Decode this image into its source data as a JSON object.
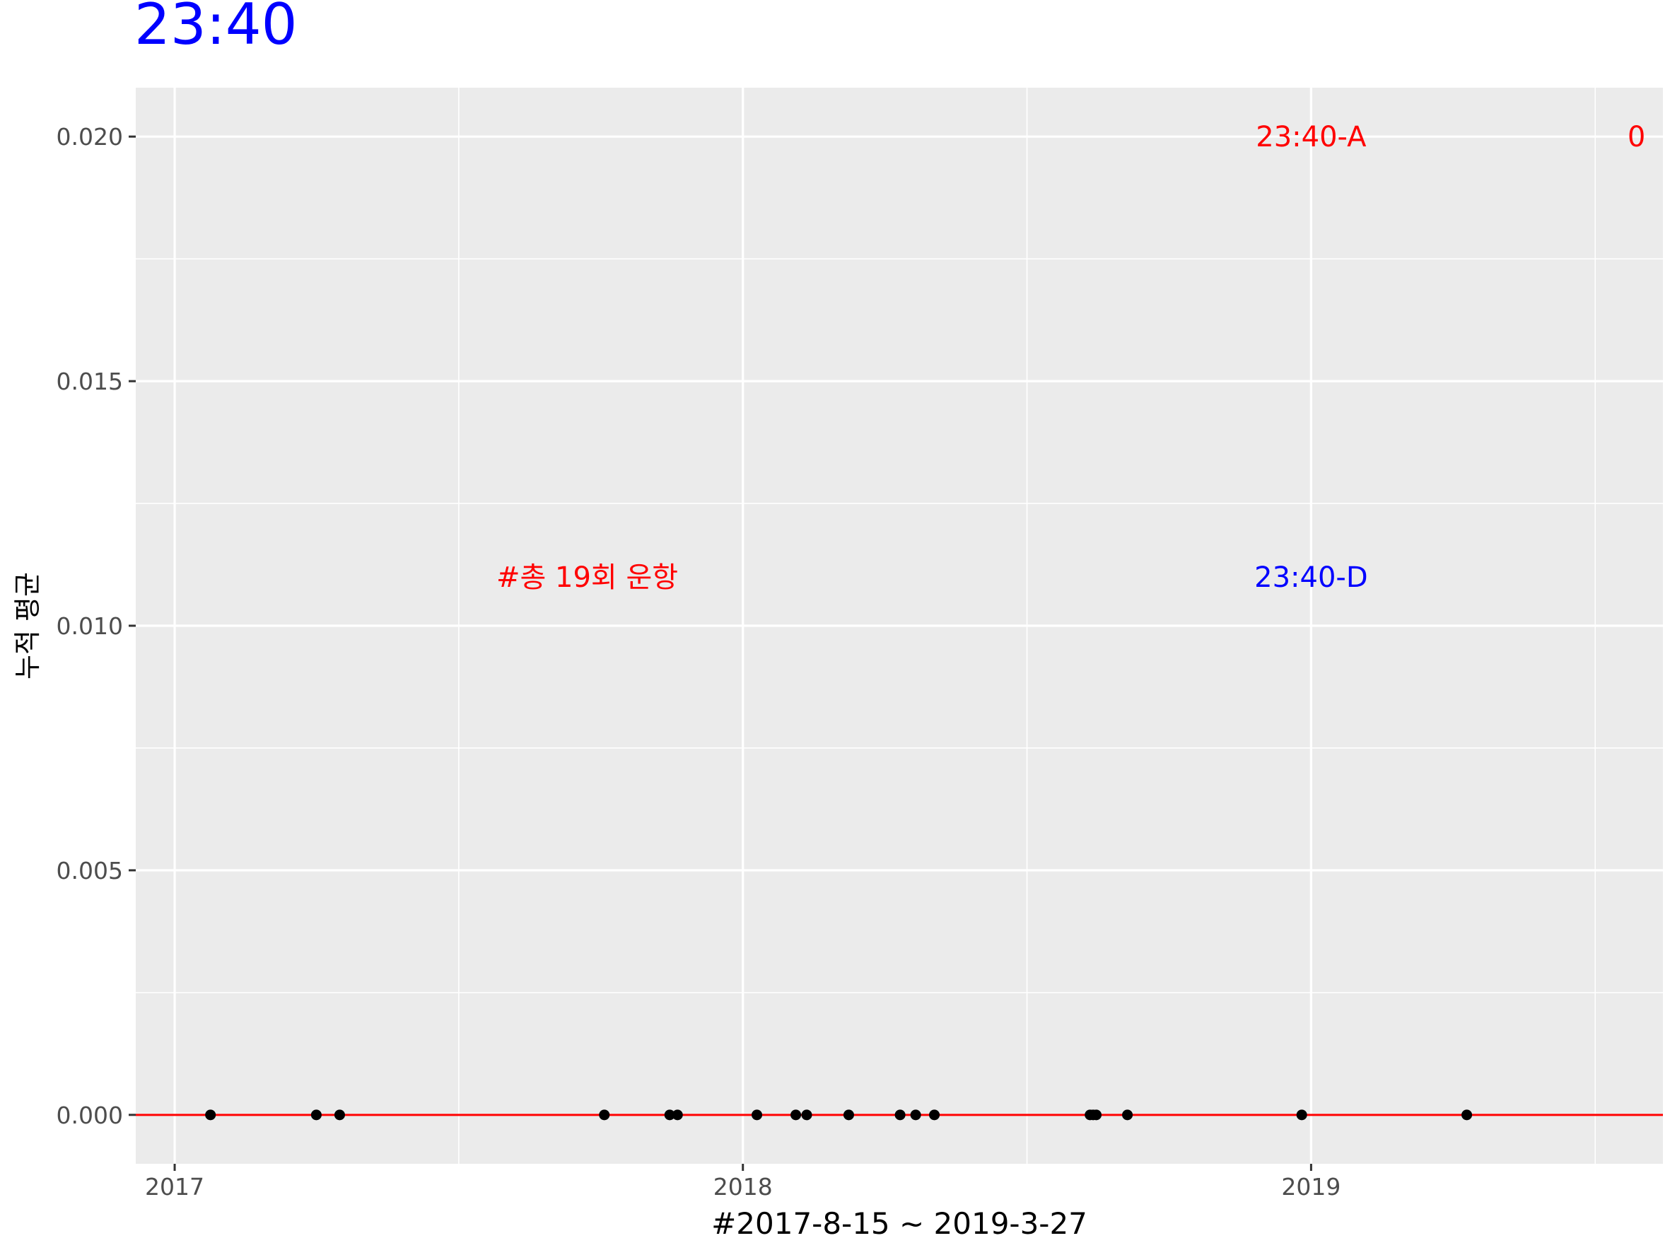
{
  "chart_data": {
    "type": "scatter",
    "title": "23:40",
    "title_color": "#0000ff",
    "xlabel": "#2017-8-15 ~ 2019-3-27",
    "ylabel": "누적 평균",
    "x_scale": "date",
    "xlim": [
      "2016-12-07",
      "2019-08-15"
    ],
    "ylim": [
      -0.001,
      0.021
    ],
    "x_ticks": [
      {
        "value": "2017-01-01",
        "label": "2017"
      },
      {
        "value": "2018-01-01",
        "label": "2018"
      },
      {
        "value": "2019-01-01",
        "label": "2019"
      }
    ],
    "y_ticks": [
      {
        "value": 0.0,
        "label": "0.000"
      },
      {
        "value": 0.005,
        "label": "0.005"
      },
      {
        "value": 0.01,
        "label": "0.010"
      },
      {
        "value": 0.015,
        "label": "0.015"
      },
      {
        "value": 0.02,
        "label": "0.020"
      }
    ],
    "grid": true,
    "panel_background": "#ebebeb",
    "hline": {
      "y": 0,
      "color": "#ff0000"
    },
    "series": [
      {
        "point_color": "#000000",
        "points": [
          {
            "x": "2017-01-24",
            "y": 0
          },
          {
            "x": "2017-04-02",
            "y": 0
          },
          {
            "x": "2017-04-17",
            "y": 0
          },
          {
            "x": "2017-10-04",
            "y": 0
          },
          {
            "x": "2017-11-15",
            "y": 0
          },
          {
            "x": "2017-11-20",
            "y": 0
          },
          {
            "x": "2018-01-10",
            "y": 0
          },
          {
            "x": "2018-02-04",
            "y": 0
          },
          {
            "x": "2018-02-11",
            "y": 0
          },
          {
            "x": "2018-03-10",
            "y": 0
          },
          {
            "x": "2018-04-12",
            "y": 0
          },
          {
            "x": "2018-04-22",
            "y": 0
          },
          {
            "x": "2018-05-04",
            "y": 0
          },
          {
            "x": "2018-08-12",
            "y": 0
          },
          {
            "x": "2018-08-14",
            "y": 0
          },
          {
            "x": "2018-08-16",
            "y": 0
          },
          {
            "x": "2018-09-05",
            "y": 0
          },
          {
            "x": "2018-12-26",
            "y": 0
          },
          {
            "x": "2019-04-11",
            "y": 0
          }
        ]
      }
    ],
    "annotations": [
      {
        "text": "23:40-A",
        "x": "2019-01-01",
        "y": 0.02,
        "color": "#ff0000"
      },
      {
        "text": "0",
        "x": "2019-07-29",
        "y": 0.02,
        "color": "#ff0000"
      },
      {
        "text": "#총 19회 운항",
        "x": "2017-09-23",
        "y": 0.011,
        "color": "#ff0000"
      },
      {
        "text": "23:40-D",
        "x": "2019-01-01",
        "y": 0.011,
        "color": "#0000ff"
      }
    ]
  }
}
